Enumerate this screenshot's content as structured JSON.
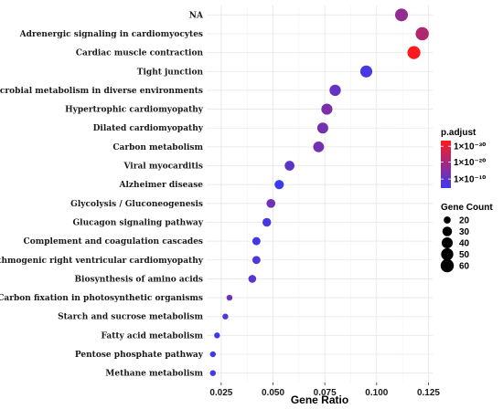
{
  "chart_data": {
    "type": "scatter",
    "xlabel": "Gene Ratio",
    "ylabel": "",
    "xlim": [
      0.018,
      0.127
    ],
    "xticks": [
      0.025,
      0.05,
      0.075,
      0.1,
      0.125
    ],
    "xtick_labels": [
      "0.025",
      "0.050",
      "0.075",
      "0.100",
      "0.125"
    ],
    "grid": true,
    "categories": [
      "NA",
      "Adrenergic signaling in cardiomyocytes",
      "Cardiac muscle contraction",
      "Tight junction",
      "Microbial metabolism in diverse environments",
      "Hypertrophic cardiomyopathy",
      "Dilated cardiomyopathy",
      "Carbon metabolism",
      "Viral myocarditis",
      "Alzheimer disease",
      "Glycolysis / Gluconeogenesis",
      "Glucagon signaling pathway",
      "Complement and coagulation cascades",
      "Arrhythmogenic right ventricular cardiomyopathy",
      "Biosynthesis of amino acids",
      "Carbon fixation in photosynthetic organisms",
      "Starch and sucrose metabolism",
      "Fatty acid metabolism",
      "Pentose phosphate pathway",
      "Methane metabolism"
    ],
    "points": [
      {
        "category": "NA",
        "x": 0.112,
        "count": 56,
        "color_pos": 0.45
      },
      {
        "category": "Adrenergic signaling in cardiomyocytes",
        "x": 0.122,
        "count": 60,
        "color_pos": 0.6
      },
      {
        "category": "Cardiac muscle contraction",
        "x": 0.118,
        "count": 58,
        "color_pos": 0.97
      },
      {
        "category": "Tight junction",
        "x": 0.095,
        "count": 48,
        "color_pos": 0.07
      },
      {
        "category": "Microbial metabolism in diverse environments",
        "x": 0.08,
        "count": 42,
        "color_pos": 0.22
      },
      {
        "category": "Hypertrophic cardiomyopathy",
        "x": 0.076,
        "count": 40,
        "color_pos": 0.33
      },
      {
        "category": "Dilated cardiomyopathy",
        "x": 0.074,
        "count": 39,
        "color_pos": 0.3
      },
      {
        "category": "Carbon metabolism",
        "x": 0.072,
        "count": 38,
        "color_pos": 0.3
      },
      {
        "category": "Viral myocarditis",
        "x": 0.058,
        "count": 31,
        "color_pos": 0.18
      },
      {
        "category": "Alzheimer disease",
        "x": 0.053,
        "count": 28,
        "color_pos": 0.01
      },
      {
        "category": "Glycolysis / Gluconeogenesis",
        "x": 0.049,
        "count": 26,
        "color_pos": 0.27
      },
      {
        "category": "Glucagon signaling pathway",
        "x": 0.047,
        "count": 25,
        "color_pos": 0.06
      },
      {
        "category": "Complement and coagulation cascades",
        "x": 0.042,
        "count": 23,
        "color_pos": 0.04
      },
      {
        "category": "Arrhythmogenic right ventricular cardiomyopathy",
        "x": 0.042,
        "count": 23,
        "color_pos": 0.1
      },
      {
        "category": "Biosynthesis of amino acids",
        "x": 0.04,
        "count": 22,
        "color_pos": 0.16
      },
      {
        "category": "Carbon fixation in photosynthetic organisms",
        "x": 0.029,
        "count": 16,
        "color_pos": 0.28
      },
      {
        "category": "Starch and sucrose metabolism",
        "x": 0.027,
        "count": 15,
        "color_pos": 0.12
      },
      {
        "category": "Fatty acid metabolism",
        "x": 0.023,
        "count": 13,
        "color_pos": 0.02
      },
      {
        "category": "Pentose phosphate pathway",
        "x": 0.021,
        "count": 12,
        "color_pos": 0.05
      },
      {
        "category": "Methane metabolism",
        "x": 0.021,
        "count": 12,
        "color_pos": 0.06
      }
    ],
    "color_scale": {
      "title": "p.adjust",
      "low_color": "#3a3af0",
      "high_color": "#ff1a1a",
      "tick_labels": [
        "1×10⁻³⁰",
        "1×10⁻²⁰",
        "1×10⁻¹⁰"
      ],
      "tick_positions": [
        0.88,
        0.55,
        0.19
      ]
    },
    "size_scale": {
      "title": "Gene Count",
      "values": [
        20,
        30,
        40,
        50,
        60
      ]
    },
    "legend_placement": "right"
  }
}
